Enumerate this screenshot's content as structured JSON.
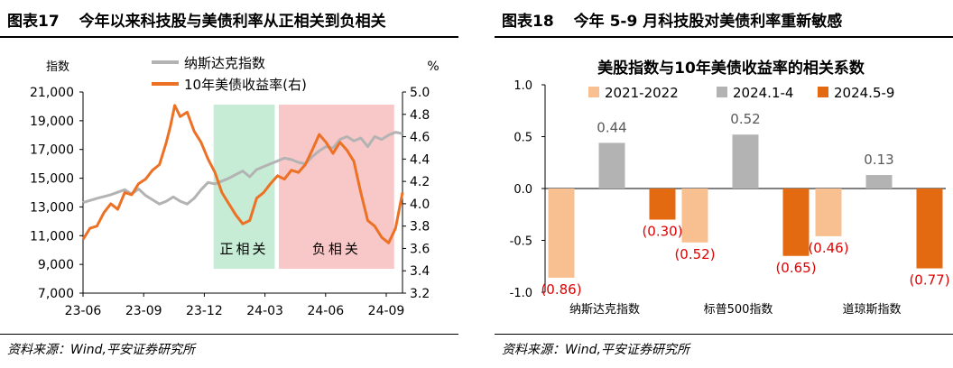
{
  "left": {
    "fig_num": "图表17",
    "title": "今年以来科技股与美债利率从正相关到负相关",
    "source": "资料来源：Wind,平安证券研究所",
    "chart_data": {
      "type": "line",
      "ylabel_left": "指数",
      "ylabel_right": "%",
      "y_left_lim": [
        7000,
        21000
      ],
      "y_left_ticks": [
        "7,000",
        "9,000",
        "11,000",
        "13,000",
        "15,000",
        "17,000",
        "19,000",
        "21,000"
      ],
      "y_right_lim": [
        3.2,
        5.0
      ],
      "y_right_ticks": [
        "3.2",
        "3.4",
        "3.6",
        "3.8",
        "4.0",
        "4.2",
        "4.4",
        "4.6",
        "4.8",
        "5.0"
      ],
      "x_ticks": [
        "23-06",
        "23-09",
        "23-12",
        "24-03",
        "24-06",
        "24-09"
      ],
      "legend_position": "top-center",
      "series": [
        {
          "name": "纳斯达克指数",
          "color": "#b3b3b3",
          "axis": "left",
          "points": [
            [
              0,
              13300
            ],
            [
              1,
              13600
            ],
            [
              2,
              13850
            ],
            [
              3,
              14200
            ],
            [
              3.5,
              13900
            ],
            [
              4,
              14250
            ],
            [
              4.5,
              13800
            ],
            [
              5,
              13500
            ],
            [
              5.5,
              13200
            ],
            [
              6,
              13400
            ],
            [
              6.5,
              13700
            ],
            [
              7,
              13400
            ],
            [
              7.5,
              13200
            ],
            [
              8,
              13600
            ],
            [
              8.5,
              14200
            ],
            [
              9,
              14700
            ],
            [
              9.5,
              14600
            ],
            [
              10,
              14800
            ],
            [
              10.5,
              15000
            ],
            [
              11,
              15250
            ],
            [
              11.5,
              15500
            ],
            [
              12,
              15100
            ],
            [
              12.5,
              15600
            ],
            [
              13,
              15800
            ],
            [
              13.5,
              16000
            ],
            [
              14,
              16200
            ],
            [
              14.5,
              16400
            ],
            [
              15,
              16300
            ],
            [
              15.5,
              16100
            ],
            [
              16,
              16000
            ],
            [
              16.5,
              16500
            ],
            [
              17,
              16900
            ],
            [
              17.5,
              17200
            ],
            [
              18,
              17100
            ],
            [
              18.5,
              17700
            ],
            [
              19,
              17900
            ],
            [
              19.5,
              17600
            ],
            [
              20,
              17800
            ],
            [
              20.5,
              17200
            ],
            [
              21,
              17900
            ],
            [
              21.5,
              17700
            ],
            [
              22,
              18000
            ],
            [
              22.5,
              18200
            ],
            [
              23,
              18100
            ]
          ]
        },
        {
          "name": "10年美债收益率(右)",
          "color": "#ed7125",
          "axis": "right",
          "points": [
            [
              0,
              3.68
            ],
            [
              0.5,
              3.78
            ],
            [
              1,
              3.8
            ],
            [
              1.5,
              3.92
            ],
            [
              2,
              4.0
            ],
            [
              2.5,
              3.95
            ],
            [
              3,
              4.1
            ],
            [
              3.5,
              4.08
            ],
            [
              4,
              4.18
            ],
            [
              4.5,
              4.22
            ],
            [
              5,
              4.3
            ],
            [
              5.5,
              4.35
            ],
            [
              6,
              4.55
            ],
            [
              6.3,
              4.7
            ],
            [
              6.6,
              4.88
            ],
            [
              7,
              4.78
            ],
            [
              7.5,
              4.82
            ],
            [
              8,
              4.65
            ],
            [
              8.5,
              4.55
            ],
            [
              9,
              4.4
            ],
            [
              9.5,
              4.28
            ],
            [
              10,
              4.1
            ],
            [
              10.5,
              4.0
            ],
            [
              11,
              3.9
            ],
            [
              11.5,
              3.82
            ],
            [
              12,
              3.85
            ],
            [
              12.5,
              4.05
            ],
            [
              13,
              4.1
            ],
            [
              13.5,
              4.18
            ],
            [
              14,
              4.25
            ],
            [
              14.5,
              4.22
            ],
            [
              15,
              4.3
            ],
            [
              15.5,
              4.28
            ],
            [
              16,
              4.35
            ],
            [
              16.5,
              4.48
            ],
            [
              17,
              4.62
            ],
            [
              17.5,
              4.55
            ],
            [
              18,
              4.45
            ],
            [
              18.5,
              4.55
            ],
            [
              19,
              4.48
            ],
            [
              19.5,
              4.38
            ],
            [
              20,
              4.1
            ],
            [
              20.5,
              3.85
            ],
            [
              21,
              3.8
            ],
            [
              21.5,
              3.7
            ],
            [
              22,
              3.65
            ],
            [
              22.5,
              3.78
            ],
            [
              23,
              4.1
            ]
          ]
        }
      ],
      "regions": [
        {
          "label": "正相关",
          "color": "#c6ecd5",
          "x_range": [
            9.4,
            13.8
          ]
        },
        {
          "label": "负相关",
          "color": "#f8c8c8",
          "x_range": [
            14.1,
            22.4
          ]
        }
      ]
    }
  },
  "right": {
    "fig_num": "图表18",
    "title": "今年 5-9 月科技股对美债利率重新敏感",
    "source": "资料来源：Wind,平安证券研究所",
    "chart_data": {
      "type": "bar",
      "title": "美股指数与10年美债收益率的相关系数",
      "ylim": [
        -1.0,
        1.0
      ],
      "y_ticks": [
        "1.0",
        "0.5",
        "0.0",
        "-0.5",
        "-1.0"
      ],
      "categories": [
        "纳斯达克指数",
        "标普500指数",
        "道琼斯指数"
      ],
      "legend_position": "top",
      "series": [
        {
          "name": "2021-2022",
          "color": "#f8c090",
          "values": [
            -0.86,
            -0.52,
            -0.46
          ],
          "labels": [
            "(0.86)",
            "(0.52)",
            "(0.46)"
          ],
          "label_color": "#e00000"
        },
        {
          "name": "2024.1-4",
          "color": "#b3b3b3",
          "values": [
            0.44,
            0.52,
            0.13
          ],
          "labels": [
            "0.44",
            "0.52",
            "0.13"
          ],
          "label_color": "#595959"
        },
        {
          "name": "2024.5-9",
          "color": "#e36a10",
          "values": [
            -0.3,
            -0.65,
            -0.77
          ],
          "labels": [
            "(0.30)",
            "(0.65)",
            "(0.77)"
          ],
          "label_color": "#e00000"
        }
      ]
    }
  }
}
